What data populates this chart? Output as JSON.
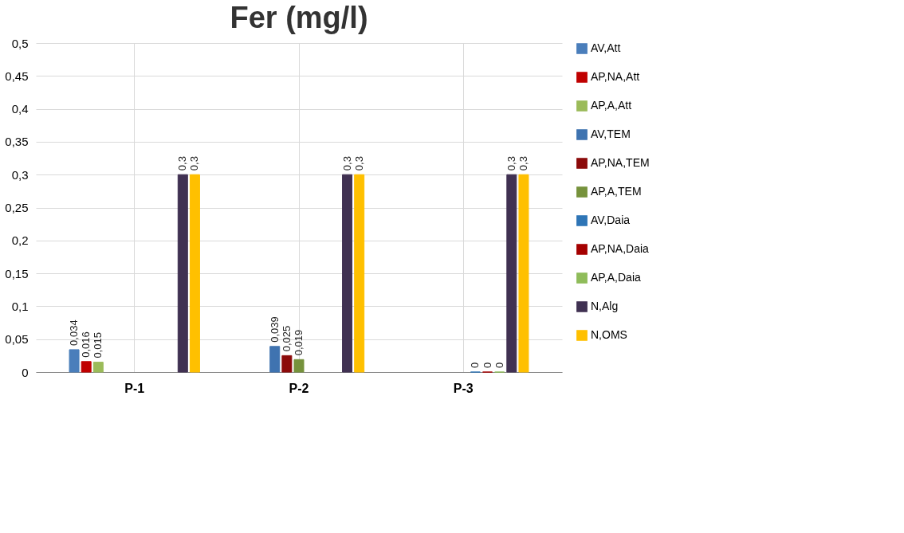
{
  "chart_data": {
    "type": "bar",
    "title": "Fer (mg/l)",
    "categories": [
      "P-1",
      "P-2",
      "P-3"
    ],
    "series": [
      {
        "name": "AV,Att",
        "color": "#4a7ebb",
        "values": [
          0.034,
          null,
          null
        ],
        "value_labels": [
          "0,034",
          null,
          null
        ]
      },
      {
        "name": "AP,NA,Att",
        "color": "#c00000",
        "values": [
          0.016,
          null,
          null
        ],
        "value_labels": [
          "0,016",
          null,
          null
        ]
      },
      {
        "name": "AP,A,Att",
        "color": "#9bbb59",
        "values": [
          0.015,
          null,
          null
        ],
        "value_labels": [
          "0,015",
          null,
          null
        ]
      },
      {
        "name": "AV,TEM",
        "color": "#3f73b0",
        "values": [
          null,
          0.039,
          null
        ],
        "value_labels": [
          null,
          "0,039",
          null
        ]
      },
      {
        "name": "AP,NA,TEM",
        "color": "#8b0a0a",
        "values": [
          null,
          0.025,
          null
        ],
        "value_labels": [
          null,
          "0,025",
          null
        ]
      },
      {
        "name": "AP,A,TEM",
        "color": "#76923c",
        "values": [
          null,
          0.019,
          null
        ],
        "value_labels": [
          null,
          "0,019",
          null
        ]
      },
      {
        "name": "AV,Daia",
        "color": "#2e75b6",
        "values": [
          null,
          null,
          0
        ],
        "value_labels": [
          null,
          null,
          "0"
        ]
      },
      {
        "name": "AP,NA,Daia",
        "color": "#a50000",
        "values": [
          null,
          null,
          0
        ],
        "value_labels": [
          null,
          null,
          "0"
        ]
      },
      {
        "name": "AP,A,Daia",
        "color": "#8fbc5a",
        "values": [
          null,
          null,
          0
        ],
        "value_labels": [
          null,
          null,
          "0"
        ]
      },
      {
        "name": "N,Alg",
        "color": "#403152",
        "values": [
          0.3,
          0.3,
          0.3
        ],
        "value_labels": [
          "0,3",
          "0,3",
          "0,3"
        ]
      },
      {
        "name": "N,OMS",
        "color": "#ffc000",
        "values": [
          0.3,
          0.3,
          0.3
        ],
        "value_labels": [
          "0,3",
          "0,3",
          "0,3"
        ]
      }
    ],
    "ylim": [
      0,
      0.5
    ],
    "yticks": [
      0,
      {
        "value": 0.05,
        "label": "0,05"
      },
      {
        "value": 0.1,
        "label": "0,1"
      },
      {
        "value": 0.15,
        "label": "0,15"
      },
      {
        "value": 0.2,
        "label": "0,2"
      },
      {
        "value": 0.25,
        "label": "0,25"
      },
      {
        "value": 0.3,
        "label": "0,3"
      },
      {
        "value": 0.35,
        "label": "0,35"
      },
      {
        "value": 0.4,
        "label": "0,4"
      },
      {
        "value": 0.45,
        "label": "0,45"
      },
      {
        "value": 0.5,
        "label": "0,5"
      }
    ],
    "grid": true,
    "legend": "right"
  }
}
